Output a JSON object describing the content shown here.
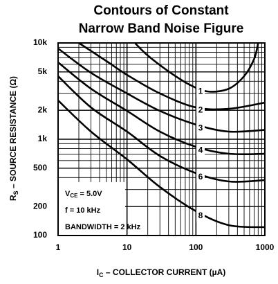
{
  "chart_data": {
    "type": "line",
    "title": [
      "Contours of Constant",
      "Narrow Band Noise Figure"
    ],
    "xlabel": {
      "main": "I",
      "sub": "C",
      "rest": " – COLLECTOR CURRENT (µA)"
    },
    "ylabel": {
      "main": "R",
      "sub": "S",
      "rest": " – SOURCE RESISTANCE (Ω)"
    },
    "xscale": "log",
    "yscale": "log",
    "grid": true,
    "xlim": [
      1,
      1000
    ],
    "ylim": [
      100,
      10000
    ],
    "xticks": [
      1,
      10,
      100,
      1000
    ],
    "yticks": [
      100,
      200,
      500,
      {
        "value": 1000,
        "label": "1k"
      },
      {
        "value": 2000,
        "label": "2k"
      },
      {
        "value": 5000,
        "label": "5k"
      },
      {
        "value": 10000,
        "label": "10k"
      }
    ],
    "xminor": [
      2,
      3,
      4,
      5,
      6,
      7,
      8,
      9,
      20,
      30,
      40,
      50,
      60,
      70,
      80,
      90,
      200,
      300,
      400,
      500,
      600,
      700,
      800,
      900
    ],
    "yminor": [
      300,
      400,
      600,
      700,
      800,
      900,
      3000,
      4000,
      6000,
      7000,
      8000,
      9000
    ],
    "annotations": [
      [
        "V",
        "CE",
        " = 5.0V"
      ],
      [
        "f = 10 kHz"
      ],
      [
        "BANDWIDTH = 2 kHz"
      ]
    ],
    "color": "#000000",
    "series": [
      {
        "name": "1",
        "x": [
          13,
          20,
          40,
          80,
          150,
          300,
          500,
          700,
          800
        ],
        "values": [
          10000,
          7400,
          5070,
          3700,
          3130,
          3350,
          4520,
          6830,
          10000
        ]
      },
      {
        "name": "2",
        "x": [
          2,
          5,
          10,
          30,
          100,
          300,
          1000
        ],
        "values": [
          10000,
          6500,
          4660,
          2990,
          2140,
          2070,
          2400
        ]
      },
      {
        "name": "3",
        "x": [
          1,
          3,
          10,
          30,
          100,
          300,
          1000
        ],
        "values": [
          8760,
          4900,
          2990,
          1970,
          1420,
          1200,
          1250
        ]
      },
      {
        "name": "4",
        "x": [
          1,
          3,
          10,
          30,
          100,
          300,
          1000
        ],
        "values": [
          6290,
          3350,
          1970,
          1200,
          834,
          706,
          706
        ]
      },
      {
        "name": "6",
        "x": [
          1,
          3,
          10,
          30,
          100,
          300,
          1000
        ],
        "values": [
          4520,
          2140,
          1200,
          671,
          444,
          364,
          376
        ]
      },
      {
        "name": "8",
        "x": [
          1,
          3,
          10,
          30,
          100,
          300,
          1000
        ],
        "values": [
          2530,
          1200,
          618,
          319,
          179,
          128,
          122
        ]
      }
    ]
  }
}
